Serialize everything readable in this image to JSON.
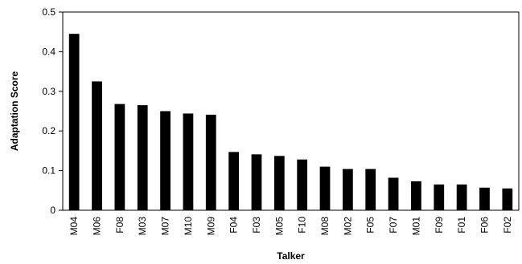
{
  "chart_data": {
    "type": "bar",
    "title": "",
    "xlabel": "Talker",
    "ylabel": "Adaptation Score",
    "ylim": [
      0,
      0.5
    ],
    "yticks": [
      "0",
      "0.1",
      "0.2",
      "0.3",
      "0.4",
      "0.5"
    ],
    "grid": false,
    "bar_color": "#000000",
    "categories": [
      "M04",
      "M06",
      "F08",
      "M03",
      "M07",
      "M10",
      "M09",
      "F04",
      "F03",
      "M05",
      "F10",
      "M08",
      "M02",
      "F05",
      "F07",
      "M01",
      "F09",
      "F01",
      "F06",
      "F02"
    ],
    "values": [
      0.445,
      0.325,
      0.268,
      0.265,
      0.25,
      0.244,
      0.241,
      0.147,
      0.141,
      0.137,
      0.128,
      0.11,
      0.104,
      0.104,
      0.082,
      0.073,
      0.065,
      0.065,
      0.057,
      0.055
    ]
  }
}
